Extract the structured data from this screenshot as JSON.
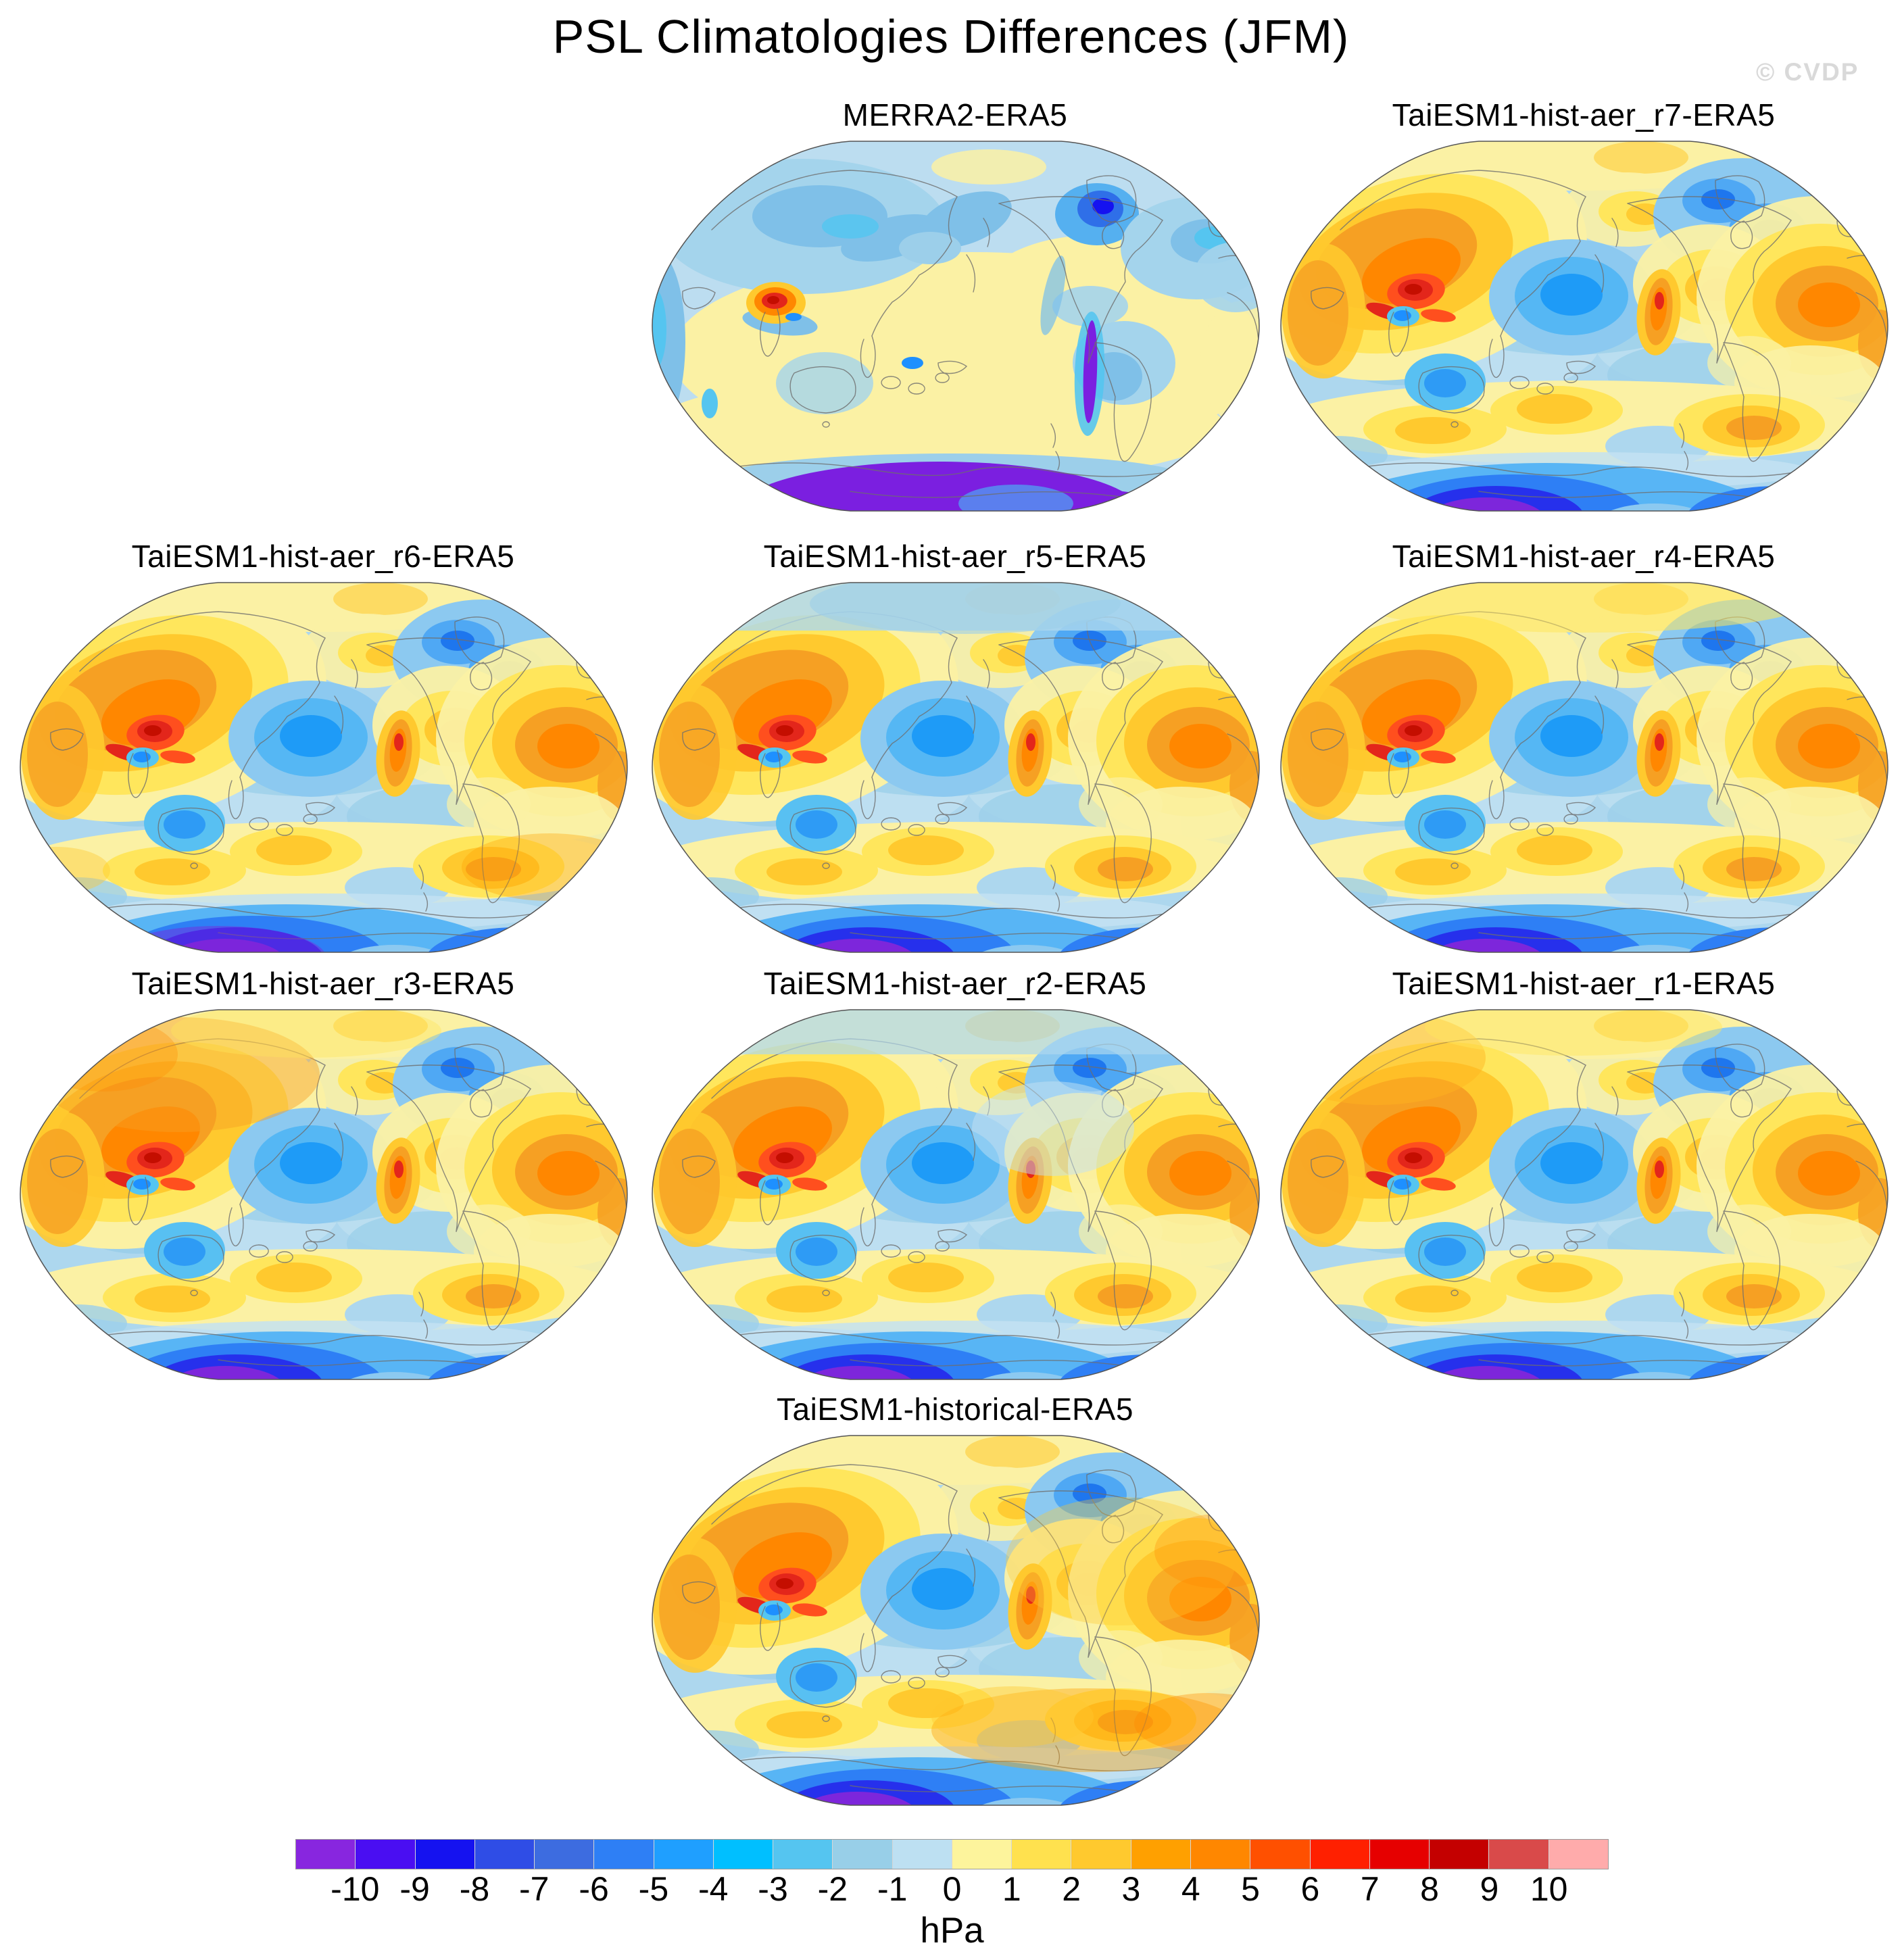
{
  "figure": {
    "title": "PSL Climatologies Differences (JFM)",
    "watermark": "© CVDP"
  },
  "panels": [
    {
      "label": "MERRA2-ERA5"
    },
    {
      "label": "TaiESM1-hist-aer_r7-ERA5"
    },
    {
      "label": "TaiESM1-hist-aer_r6-ERA5"
    },
    {
      "label": "TaiESM1-hist-aer_r5-ERA5"
    },
    {
      "label": "TaiESM1-hist-aer_r4-ERA5"
    },
    {
      "label": "TaiESM1-hist-aer_r3-ERA5"
    },
    {
      "label": "TaiESM1-hist-aer_r2-ERA5"
    },
    {
      "label": "TaiESM1-hist-aer_r1-ERA5"
    },
    {
      "label": "TaiESM1-historical-ERA5"
    }
  ],
  "colorbar": {
    "unit": "hPa",
    "tick_labels": [
      "-10",
      "-9",
      "-8",
      "-7",
      "-6",
      "-5",
      "-4",
      "-3",
      "-2",
      "-1",
      "0",
      "1",
      "2",
      "3",
      "4",
      "5",
      "6",
      "7",
      "8",
      "9",
      "10"
    ],
    "colors": [
      "#8826DF",
      "#4A0EF2",
      "#1512F0",
      "#2F4DE6",
      "#3D6CE0",
      "#2E7FF5",
      "#1F9FFF",
      "#00BFFF",
      "#55C5F0",
      "#98CFE8",
      "#BDE0F2",
      "#FDF49C",
      "#FFE14E",
      "#FFC92E",
      "#FFA000",
      "#FF8700",
      "#FF5000",
      "#FF2000",
      "#E60000",
      "#C40000",
      "#D94A4A",
      "#FFABAB"
    ]
  },
  "chart_data": {
    "type": "heatmap",
    "title": "PSL Climatologies Differences (JFM)",
    "variable": "Sea level pressure (PSL) climatology difference vs ERA5",
    "season": "JFM",
    "unit": "hPa",
    "contour_levels": [
      -10,
      -9,
      -8,
      -7,
      -6,
      -5,
      -4,
      -3,
      -2,
      -1,
      0,
      1,
      2,
      3,
      4,
      5,
      6,
      7,
      8,
      9,
      10
    ],
    "palette": [
      "#8826DF",
      "#4A0EF2",
      "#1512F0",
      "#2F4DE6",
      "#3D6CE0",
      "#2E7FF5",
      "#1F9FFF",
      "#00BFFF",
      "#55C5F0",
      "#98CFE8",
      "#BDE0F2",
      "#FDF49C",
      "#FFE14E",
      "#FFC92E",
      "#FFA000",
      "#FF8700",
      "#FF5000",
      "#FF2000",
      "#E60000",
      "#C40000",
      "#D94A4A",
      "#FFABAB"
    ],
    "panels": [
      "MERRA2-ERA5",
      "TaiESM1-hist-aer_r7-ERA5",
      "TaiESM1-hist-aer_r6-ERA5",
      "TaiESM1-hist-aer_r5-ERA5",
      "TaiESM1-hist-aer_r4-ERA5",
      "TaiESM1-hist-aer_r3-ERA5",
      "TaiESM1-hist-aer_r2-ERA5",
      "TaiESM1-hist-aer_r1-ERA5",
      "TaiESM1-historical-ERA5"
    ],
    "layout": {
      "grid_rows": [
        [
          "",
          "MERRA2-ERA5",
          "TaiESM1-hist-aer_r7-ERA5"
        ],
        [
          "TaiESM1-hist-aer_r6-ERA5",
          "TaiESM1-hist-aer_r5-ERA5",
          "TaiESM1-hist-aer_r4-ERA5"
        ],
        [
          "TaiESM1-hist-aer_r3-ERA5",
          "TaiESM1-hist-aer_r2-ERA5",
          "TaiESM1-hist-aer_r1-ERA5"
        ],
        [
          "",
          "TaiESM1-historical-ERA5",
          ""
        ]
      ],
      "projection": "global oval (Pacific-centered)",
      "legend_position": "bottom"
    },
    "qualitative_fields": {
      "MERRA2-ERA5": "Near-zero differences: pale yellow (0 to +1) tropics/subtropics, light blue (0 to -2) high latitudes, +6 to +8 spot over the Tibetan Plateau, -8 to -10 strip along the Andes, -8 to -10 over Antarctica, -3 to -5 over Greenland.",
      "TaiESM1_members": "Common pattern: +2 to +7 over Eurasia with red maximum (+7 to +9) over Central Asia, -2 to -5 North Pacific low, -3 to -6 over NE Canada/Greenland, +2 to +5 North Atlantic/Europe, +1 to +4 Southern-Hemisphere mid-latitude band, -6 to -10 (purple) near West Antarctica, background ocean -1 to -2."
    }
  }
}
